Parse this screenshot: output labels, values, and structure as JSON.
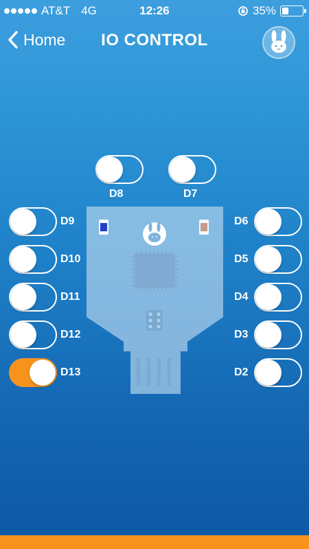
{
  "status": {
    "carrier": "AT&T",
    "network": "4G",
    "time": "12:26",
    "battery": "35%",
    "battery_level": 0.35
  },
  "nav": {
    "back_label": "Home",
    "title": "IO CONTROL"
  },
  "pins": [
    {
      "label": "D8",
      "on": false
    },
    {
      "label": "D7",
      "on": false
    },
    {
      "label": "D9",
      "on": false
    },
    {
      "label": "D10",
      "on": false
    },
    {
      "label": "D11",
      "on": false
    },
    {
      "label": "D12",
      "on": false
    },
    {
      "label": "D13",
      "on": true
    },
    {
      "label": "D6",
      "on": false
    },
    {
      "label": "D5",
      "on": false
    },
    {
      "label": "D4",
      "on": false
    },
    {
      "label": "D3",
      "on": false
    },
    {
      "label": "D2",
      "on": false
    }
  ],
  "colors": {
    "accent": "#f7931d",
    "background_top": "#3d9ede",
    "background_bottom": "#0f5aa6"
  }
}
